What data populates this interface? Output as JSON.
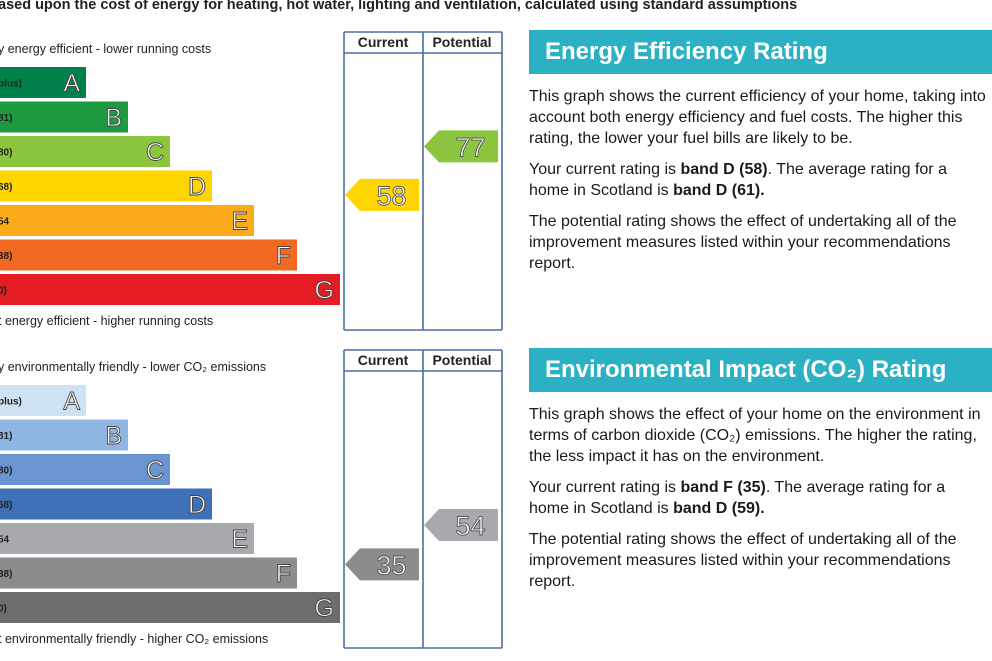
{
  "intro_text": "ased upon the cost of energy for heating, hot water, lighting and ventilation, calculated using standard assumptions",
  "chart_data": [
    {
      "type": "bar",
      "id": "energy-efficiency",
      "title": "",
      "header_current": "Current",
      "header_potential": "Potential",
      "top_caption": "y energy efficient - lower running costs",
      "bottom_caption": "t energy efficient - higher running costs",
      "categories": [
        "A",
        "B",
        "C",
        "D",
        "E",
        "F",
        "G"
      ],
      "band_ranges": [
        "plus)",
        "81)",
        "80)",
        "68)",
        "54",
        "38)",
        "0)"
      ],
      "band_colors": [
        "#00804a",
        "#1d9a3f",
        "#8cc63f",
        "#ffd500",
        "#fbaa1a",
        "#f26a21",
        "#e31d23"
      ],
      "current": {
        "value": 58,
        "band": "D",
        "color": "#ffd500"
      },
      "potential": {
        "value": 77,
        "band": "C",
        "color": "#8cc63f"
      }
    },
    {
      "type": "bar",
      "id": "environmental-impact",
      "title": "",
      "header_current": "Current",
      "header_potential": "Potential",
      "top_caption": "y environmentally friendly - lower CO₂ emissions",
      "bottom_caption": "t environmentally friendly - higher CO₂ emissions",
      "categories": [
        "A",
        "B",
        "C",
        "D",
        "E",
        "F",
        "G"
      ],
      "band_ranges": [
        "plus)",
        "81)",
        "80)",
        "68)",
        "54",
        "38)",
        "0)"
      ],
      "band_colors": [
        "#cfe2f3",
        "#8fb6e2",
        "#6b95d1",
        "#3e71b8",
        "#a7a9ac",
        "#8a8c8e",
        "#6b6d6f"
      ],
      "current": {
        "value": 35,
        "band": "F",
        "color": "#8a8c8e"
      },
      "potential": {
        "value": 54,
        "band": "E",
        "color": "#a7a9ac"
      }
    }
  ],
  "ee_panel": {
    "title": "Energy Efficiency Rating",
    "p1": "This graph shows the current efficiency of your home, taking into account both energy efficiency and fuel costs. The higher this rating, the lower your fuel bills are likely to be.",
    "p2_pre": "Your current rating is ",
    "p2_b1": "band D (58)",
    "p2_mid": ". The average rating for a home in Scotland is ",
    "p2_b2": "band D (61).",
    "p3": "The potential rating shows the effect of undertaking all of the improvement measures listed within your recommendations report."
  },
  "ei_panel": {
    "title": "Environmental Impact (CO₂) Rating",
    "p1": "This graph shows the effect of your home on the environment in terms of carbon dioxide (CO₂) emissions. The higher the rating, the less impact it has on the environment.",
    "p2_pre": "Your current rating is ",
    "p2_b1": "band F (35)",
    "p2_mid": ". The average rating for a home in Scotland is ",
    "p2_b2": "band D (59).",
    "p3": "The potential rating shows the effect of undertaking all of the improvement measures listed within your recommendations report."
  }
}
